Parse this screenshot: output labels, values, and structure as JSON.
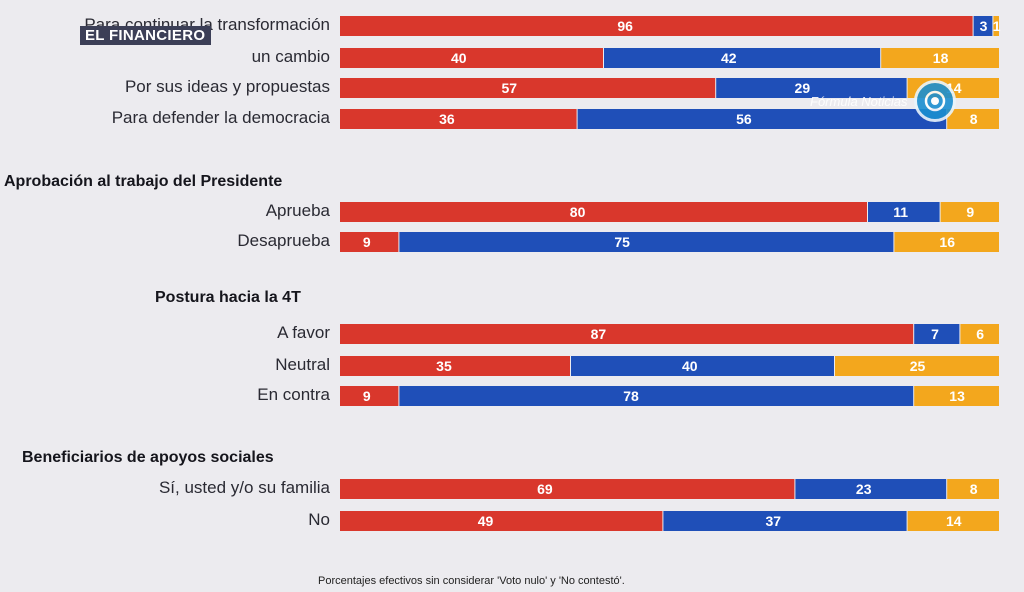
{
  "brand": "EL FINANCIERO",
  "watermark": "Fórmula Noticias",
  "colors": {
    "red": "#d9372c",
    "blue": "#1f4fb8",
    "yellow": "#f3a71d",
    "background": "#ecebef"
  },
  "footnote": "Porcentajes efectivos sin considerar 'Voto nulo' y 'No contestó'.",
  "chart_data": {
    "type": "bar",
    "orientation": "horizontal",
    "stacked": true,
    "xlim": [
      0,
      100
    ],
    "series_colors": [
      "#d9372c",
      "#1f4fb8",
      "#f3a71d"
    ],
    "sections": [
      {
        "title": "",
        "rows": [
          {
            "label": "Para continuar la transformación",
            "values": [
              96,
              3,
              1
            ]
          },
          {
            "label": "un cambio",
            "values": [
              40,
              42,
              18
            ]
          },
          {
            "label": "Por sus ideas y propuestas",
            "values": [
              57,
              29,
              14
            ]
          },
          {
            "label": "Para defender la democracia",
            "values": [
              36,
              56,
              8
            ]
          }
        ]
      },
      {
        "title": "Aprobación al trabajo del Presidente",
        "rows": [
          {
            "label": "Aprueba",
            "values": [
              80,
              11,
              9
            ]
          },
          {
            "label": "Desaprueba",
            "values": [
              9,
              75,
              16
            ]
          }
        ]
      },
      {
        "title": "Postura hacia la 4T",
        "rows": [
          {
            "label": "A favor",
            "values": [
              87,
              7,
              6
            ]
          },
          {
            "label": "Neutral",
            "values": [
              35,
              40,
              25
            ]
          },
          {
            "label": "En contra",
            "values": [
              9,
              78,
              13
            ]
          }
        ]
      },
      {
        "title": "Beneficiarios de apoyos sociales",
        "rows": [
          {
            "label": "Sí, usted y/o su familia",
            "values": [
              69,
              23,
              8
            ]
          },
          {
            "label": "No",
            "values": [
              49,
              37,
              14
            ]
          }
        ]
      }
    ]
  }
}
